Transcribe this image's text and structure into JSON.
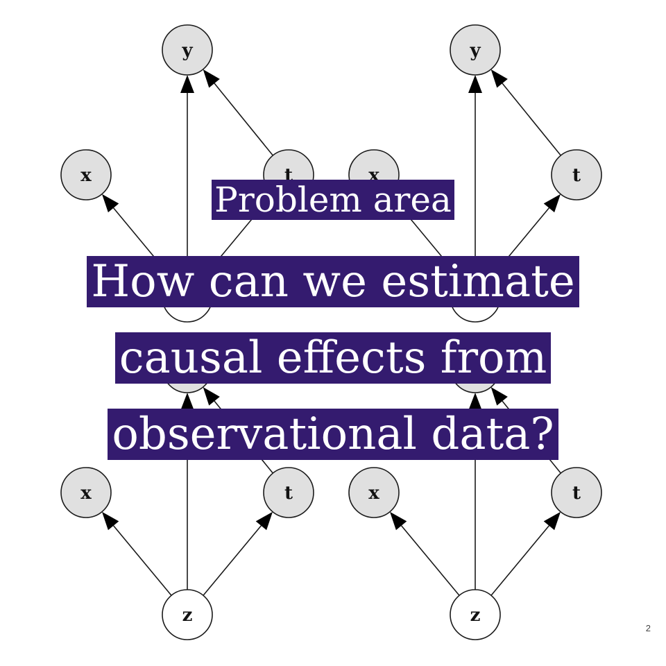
{
  "slide": {
    "subtitle": "Problem area",
    "headline": [
      "How can we estimate",
      "causal effects from",
      "observational data?"
    ],
    "page_number": "2"
  },
  "colors": {
    "highlight": "#341b6f",
    "highlight_text": "#ffffff",
    "node_fill_observed": "#e0e0e0",
    "node_fill_latent": "#ffffff"
  },
  "diagram": {
    "nodes": [
      {
        "id": "top-left-y",
        "label": "y",
        "observed": true
      },
      {
        "id": "top-left-x",
        "label": "x",
        "observed": true
      },
      {
        "id": "top-left-t",
        "label": "t",
        "observed": true
      },
      {
        "id": "top-left-z",
        "label": "z",
        "observed": false
      },
      {
        "id": "top-right-y",
        "label": "y",
        "observed": true
      },
      {
        "id": "top-right-x",
        "label": "x",
        "observed": true
      },
      {
        "id": "top-right-t",
        "label": "t",
        "observed": true
      },
      {
        "id": "top-right-z",
        "label": "z",
        "observed": false
      },
      {
        "id": "bottom-left-y",
        "label": "y",
        "observed": true
      },
      {
        "id": "bottom-left-x",
        "label": "x",
        "observed": true
      },
      {
        "id": "bottom-left-t",
        "label": "t",
        "observed": true
      },
      {
        "id": "bottom-left-z",
        "label": "z",
        "observed": false
      },
      {
        "id": "bottom-right-y",
        "label": "y",
        "observed": true
      },
      {
        "id": "bottom-right-x",
        "label": "x",
        "observed": true
      },
      {
        "id": "bottom-right-t",
        "label": "t",
        "observed": true
      },
      {
        "id": "bottom-right-z",
        "label": "z",
        "observed": false
      }
    ],
    "edges": [
      {
        "from": "top-left-z",
        "to": "top-left-x"
      },
      {
        "from": "top-left-z",
        "to": "top-left-y"
      },
      {
        "from": "top-left-z",
        "to": "top-left-t"
      },
      {
        "from": "top-left-t",
        "to": "top-left-y"
      },
      {
        "from": "top-right-z",
        "to": "top-right-x"
      },
      {
        "from": "top-right-z",
        "to": "top-right-y"
      },
      {
        "from": "top-right-z",
        "to": "top-right-t"
      },
      {
        "from": "top-right-t",
        "to": "top-right-y"
      },
      {
        "from": "bottom-left-z",
        "to": "bottom-left-x"
      },
      {
        "from": "bottom-left-z",
        "to": "bottom-left-y"
      },
      {
        "from": "bottom-left-z",
        "to": "bottom-left-t"
      },
      {
        "from": "bottom-left-t",
        "to": "bottom-left-y"
      },
      {
        "from": "bottom-right-z",
        "to": "bottom-right-x"
      },
      {
        "from": "bottom-right-z",
        "to": "bottom-right-y"
      },
      {
        "from": "bottom-right-z",
        "to": "bottom-right-t"
      },
      {
        "from": "bottom-right-t",
        "to": "bottom-right-y"
      }
    ]
  }
}
